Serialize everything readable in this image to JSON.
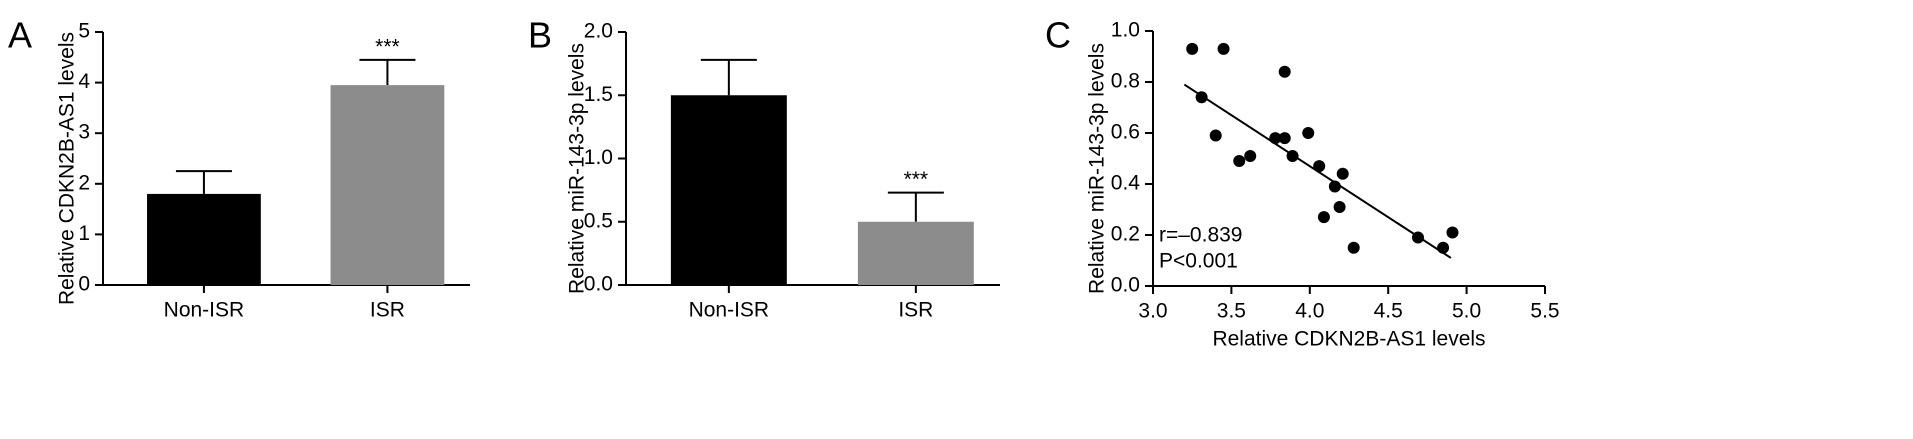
{
  "chart_data": [
    {
      "type": "bar",
      "panel_label": "A",
      "ylabel": "Relative CDKN2B-AS1 levels",
      "categories": [
        "Non-ISR",
        "ISR"
      ],
      "values": [
        1.8,
        3.95
      ],
      "errors": [
        0.45,
        0.5
      ],
      "colors": [
        "#000000",
        "#8c8c8c"
      ],
      "significance": [
        null,
        "***"
      ],
      "ylim": [
        0,
        5
      ],
      "yticks": [
        0,
        1,
        2,
        3,
        4,
        5
      ]
    },
    {
      "type": "bar",
      "panel_label": "B",
      "ylabel": "Relative miR-143-3p levels",
      "categories": [
        "Non-ISR",
        "ISR"
      ],
      "values": [
        1.5,
        0.5
      ],
      "errors": [
        0.28,
        0.23
      ],
      "colors": [
        "#000000",
        "#8c8c8c"
      ],
      "significance": [
        null,
        "***"
      ],
      "ylim": [
        0,
        2
      ],
      "yticks": [
        {
          "value": 0,
          "label": "0.0"
        },
        0.5,
        {
          "value": 1,
          "label": "1.0"
        },
        1.5,
        {
          "value": 2,
          "label": "2.0"
        }
      ]
    },
    {
      "type": "scatter",
      "panel_label": "C",
      "xlabel": "Relative CDKN2B-AS1 levels",
      "ylabel": "Relative miR-143-3p levels",
      "color": "#000000",
      "x": [
        3.25,
        3.31,
        3.45,
        3.4,
        3.55,
        3.62,
        3.84,
        3.78,
        3.84,
        3.89,
        3.99,
        4.06,
        4.16,
        4.09,
        4.19,
        4.21,
        4.28,
        4.69,
        4.85,
        4.91
      ],
      "y": [
        0.93,
        0.74,
        0.93,
        0.59,
        0.49,
        0.51,
        0.84,
        0.58,
        0.58,
        0.51,
        0.6,
        0.47,
        0.39,
        0.27,
        0.31,
        0.44,
        0.15,
        0.19,
        0.15,
        0.21
      ],
      "fit_line": {
        "x": [
          3.2,
          4.9
        ],
        "y": [
          0.79,
          0.11
        ]
      },
      "annotations": [
        "r=–0.839",
        "P<0.001"
      ],
      "xlim": [
        3,
        5.5
      ],
      "xticks": [
        {
          "value": 3,
          "label": "3.0"
        },
        3.5,
        {
          "value": 4,
          "label": "4.0"
        },
        4.5,
        {
          "value": 5,
          "label": "5.0"
        },
        5.5
      ],
      "ylim": [
        0,
        1
      ],
      "yticks": [
        {
          "value": 0,
          "label": "0.0"
        },
        0.2,
        0.4,
        0.6,
        0.8,
        {
          "value": 1,
          "label": "1.0"
        }
      ]
    }
  ]
}
